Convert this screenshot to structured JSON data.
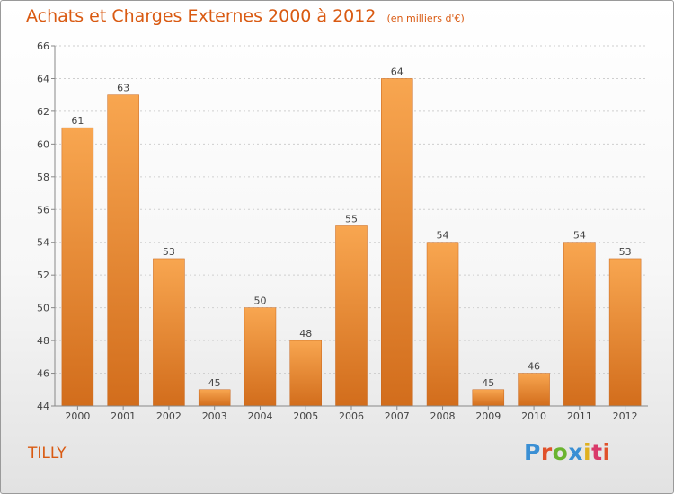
{
  "header": {
    "title": "Achats et Charges Externes 2000 à 2012",
    "unit": "(en milliers d'€)"
  },
  "footer": {
    "commune": "TILLY",
    "logo_text": "Proxiti",
    "logo_colors": [
      "#3a8fd4",
      "#e0512a",
      "#6ab42f",
      "#3a8fd4",
      "#e0b020",
      "#d93a6a",
      "#e0512a"
    ]
  },
  "colors": {
    "text_accent": "#d95a12",
    "bar_light": "#f8a650",
    "bar_dark": "#d26d1c"
  },
  "chart_data": {
    "type": "bar",
    "title": "Achats et Charges Externes 2000 à 2012",
    "categories": [
      "2000",
      "2001",
      "2002",
      "2003",
      "2004",
      "2005",
      "2006",
      "2007",
      "2008",
      "2009",
      "2010",
      "2011",
      "2012"
    ],
    "values": [
      61,
      63,
      53,
      45,
      50,
      48,
      55,
      64,
      54,
      45,
      46,
      54,
      53
    ],
    "ylim": [
      44,
      66
    ],
    "yticks": [
      44,
      46,
      48,
      50,
      52,
      54,
      56,
      58,
      60,
      62,
      64,
      66
    ],
    "grid": true,
    "data_labels": true
  }
}
